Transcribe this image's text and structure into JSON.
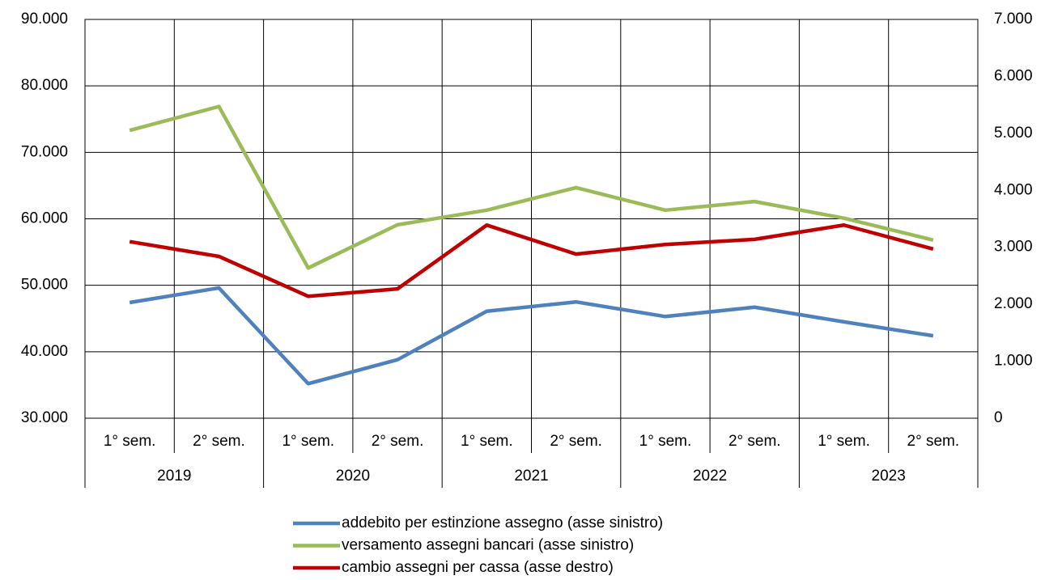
{
  "chart_data": {
    "type": "line",
    "categories": [
      "1° sem.",
      "2° sem.",
      "1° sem.",
      "2° sem.",
      "1° sem.",
      "2° sem.",
      "1° sem.",
      "2° sem.",
      "1° sem.",
      "2° sem."
    ],
    "category_groups": [
      "2019",
      "2020",
      "2021",
      "2022",
      "2023"
    ],
    "ylim": [
      30000,
      90000
    ],
    "yticks": [
      {
        "value": 30000,
        "label": "30.000"
      },
      {
        "value": 40000,
        "label": "40.000"
      },
      {
        "value": 50000,
        "label": "50.000"
      },
      {
        "value": 60000,
        "label": "60.000"
      },
      {
        "value": 70000,
        "label": "70.000"
      },
      {
        "value": 80000,
        "label": "80.000"
      },
      {
        "value": 90000,
        "label": "90.000"
      }
    ],
    "y2lim": [
      0,
      7000
    ],
    "y2ticks": [
      0,
      {
        "value": 1000,
        "label": "1.000"
      },
      {
        "value": 2000,
        "label": "2.000"
      },
      {
        "value": 3000,
        "label": "3.000"
      },
      {
        "value": 4000,
        "label": "4.000"
      },
      {
        "value": 5000,
        "label": "5.000"
      },
      {
        "value": 6000,
        "label": "6.000"
      },
      {
        "value": 7000,
        "label": "7.000"
      }
    ],
    "grid": true,
    "legend": "bottom",
    "series": [
      {
        "name": "addebito per estinzione assegno (asse sinistro)",
        "color": "#4f81bd",
        "values": [
          47400,
          49600,
          35200,
          38800,
          46100,
          47500,
          45300,
          46700,
          44500,
          42400
        ]
      },
      {
        "name": "versamento assegni bancari (asse sinistro)",
        "color": "#9bbb59",
        "values": [
          73300,
          76900,
          52600,
          59100,
          61300,
          64700,
          61300,
          62600,
          60100,
          56800
        ]
      },
      {
        "name": "cambio assegni per cassa (asse destro)",
        "color": "#c00000",
        "axis": "y2",
        "values": [
          3100,
          2840,
          2140,
          2270,
          3390,
          2880,
          3050,
          3140,
          3390,
          2970
        ]
      }
    ]
  }
}
